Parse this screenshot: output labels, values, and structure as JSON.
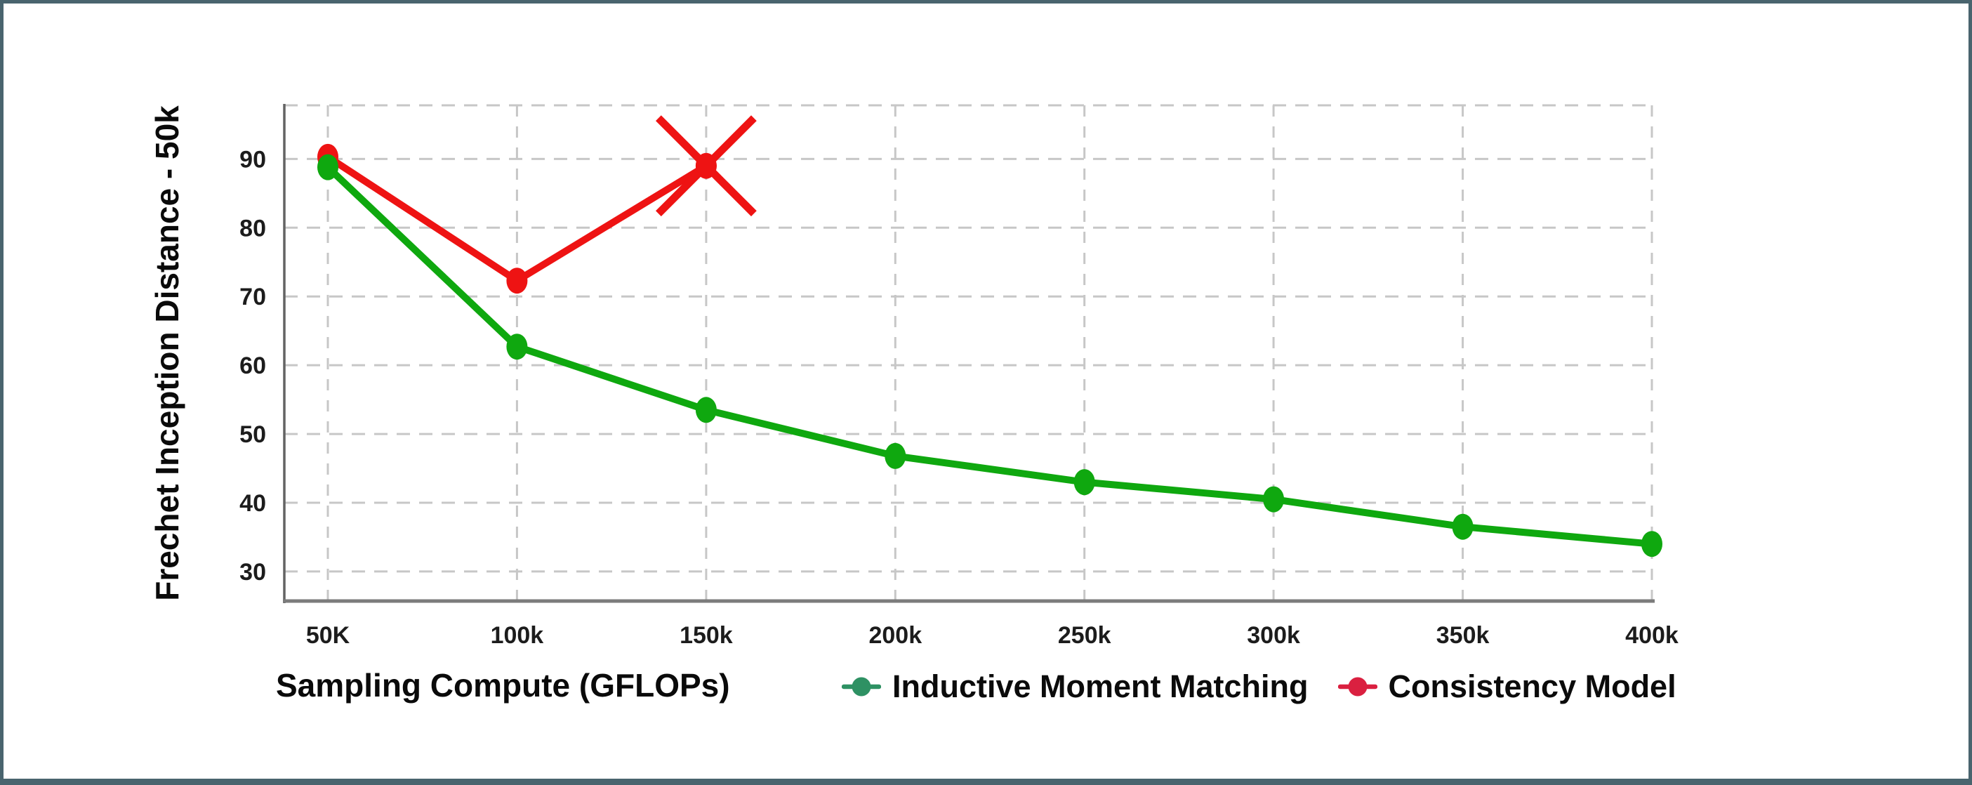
{
  "frame": {
    "border_color": "#49646e",
    "background": "#ffffff"
  },
  "chart_data": {
    "type": "line",
    "title": "",
    "xlabel": "Sampling Compute (GFLOPs)",
    "ylabel": "Frechet Inception Distance - 50k",
    "categories": [
      "50K",
      "100k",
      "150k",
      "200k",
      "250k",
      "300k",
      "350k",
      "400k"
    ],
    "y_ticks": [
      30,
      40,
      50,
      60,
      70,
      80,
      90
    ],
    "ylim": [
      25.7,
      97.8
    ],
    "grid": true,
    "grid_color": "#c7c7c7",
    "axis_color": "#6e6e6e",
    "tick_color": "#1c1c1c",
    "legend_position": "bottom",
    "series": [
      {
        "name": "Inductive Moment Matching",
        "color": "#0fa80f",
        "legend_color": "#2e9163",
        "values": [
          88.8,
          62.7,
          53.5,
          46.8,
          43.0,
          40.5,
          36.5,
          34.0
        ]
      },
      {
        "name": "Consistency Model",
        "color": "#ee1313",
        "legend_color": "#da2040",
        "values": [
          90.3,
          72.3,
          89.0,
          null,
          null,
          null,
          null,
          null
        ],
        "crossed_out_at": "150k"
      }
    ]
  }
}
